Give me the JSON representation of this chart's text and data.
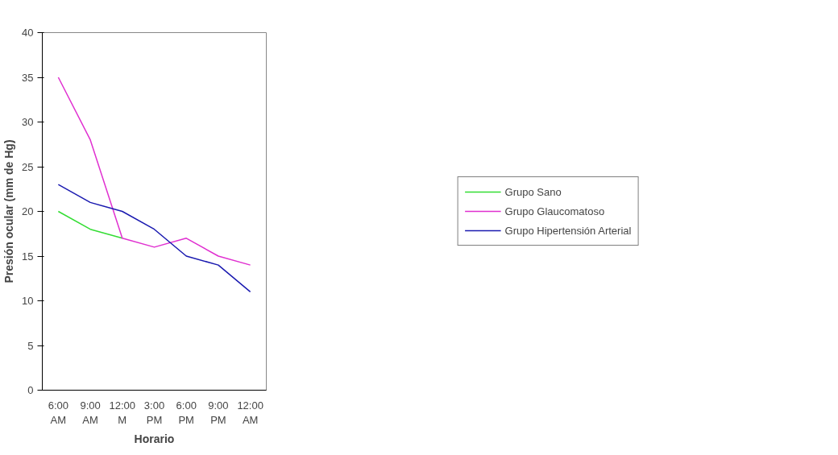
{
  "chart_data": {
    "type": "line",
    "xlabel": "Horario",
    "ylabel": "Presión ocular (mm de Hg)",
    "categories": [
      "6:00 AM",
      "9:00 AM",
      "12:00 M",
      "3:00 PM",
      "6:00 PM",
      "9:00 PM",
      "12:00 AM"
    ],
    "series": [
      {
        "name": "Grupo Sano",
        "color": "#33dd33",
        "values": [
          20,
          18,
          17,
          null,
          null,
          null,
          null
        ]
      },
      {
        "name": "Grupo Glaucomatoso",
        "color": "#e030d0",
        "values": [
          35,
          28,
          17,
          16,
          17,
          15,
          14
        ]
      },
      {
        "name": "Grupo Hipertensión Arterial",
        "color": "#1a1ab0",
        "values": [
          23,
          21,
          20,
          18,
          15,
          14,
          11
        ]
      }
    ],
    "ylim": [
      0,
      40
    ],
    "yticks": [
      0,
      5,
      10,
      15,
      20,
      25,
      30,
      35,
      40
    ],
    "grid": false,
    "legend": "right",
    "marker": "none",
    "line_style": "solid"
  }
}
